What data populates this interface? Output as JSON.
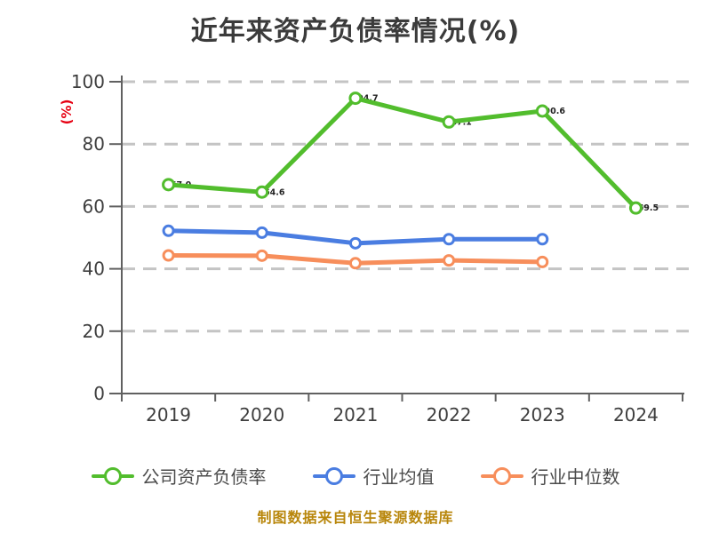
{
  "title": "近年来资产负债率情况(%)",
  "y_axis_label": "(%)",
  "footer_note": "制图数据来自恒生聚源数据库",
  "chart_data": {
    "type": "line",
    "title": "近年来资产负债率情况(%)",
    "categories": [
      "2019",
      "2020",
      "2021",
      "2022",
      "2023",
      "2024"
    ],
    "series": [
      {
        "name": "公司资产负债率",
        "color": "#52bd2d",
        "marker": "circle-white-fill",
        "show_point_labels": true,
        "values": [
          67.0,
          64.6,
          94.7,
          87.1,
          90.6,
          59.5
        ]
      },
      {
        "name": "行业均值",
        "color": "#4a7de1",
        "marker": "circle-white-fill",
        "show_point_labels": false,
        "values": [
          52.2,
          51.6,
          48.2,
          49.5,
          49.5,
          null
        ]
      },
      {
        "name": "行业中位数",
        "color": "#f78e5b",
        "marker": "circle-white-fill",
        "show_point_labels": false,
        "values": [
          44.3,
          44.2,
          41.8,
          42.7,
          42.2,
          null
        ]
      }
    ],
    "ylabel": "(%)",
    "ylim": [
      0,
      100
    ],
    "yticks": [
      0,
      20,
      40,
      60,
      80,
      100
    ],
    "grid": "horizontal-dashed",
    "legend_position": "bottom"
  },
  "colors": {
    "company_series": "#52bd2d",
    "industry_avg_series": "#4a7de1",
    "industry_median_series": "#f78e5b",
    "title_text": "#3b3b3b",
    "axis_text": "#3e3e3e",
    "axis_line": "#606060",
    "gridline": "#c4c4c4",
    "y_axis_label_text": "#e60012",
    "footer_text": "#b8860b"
  }
}
